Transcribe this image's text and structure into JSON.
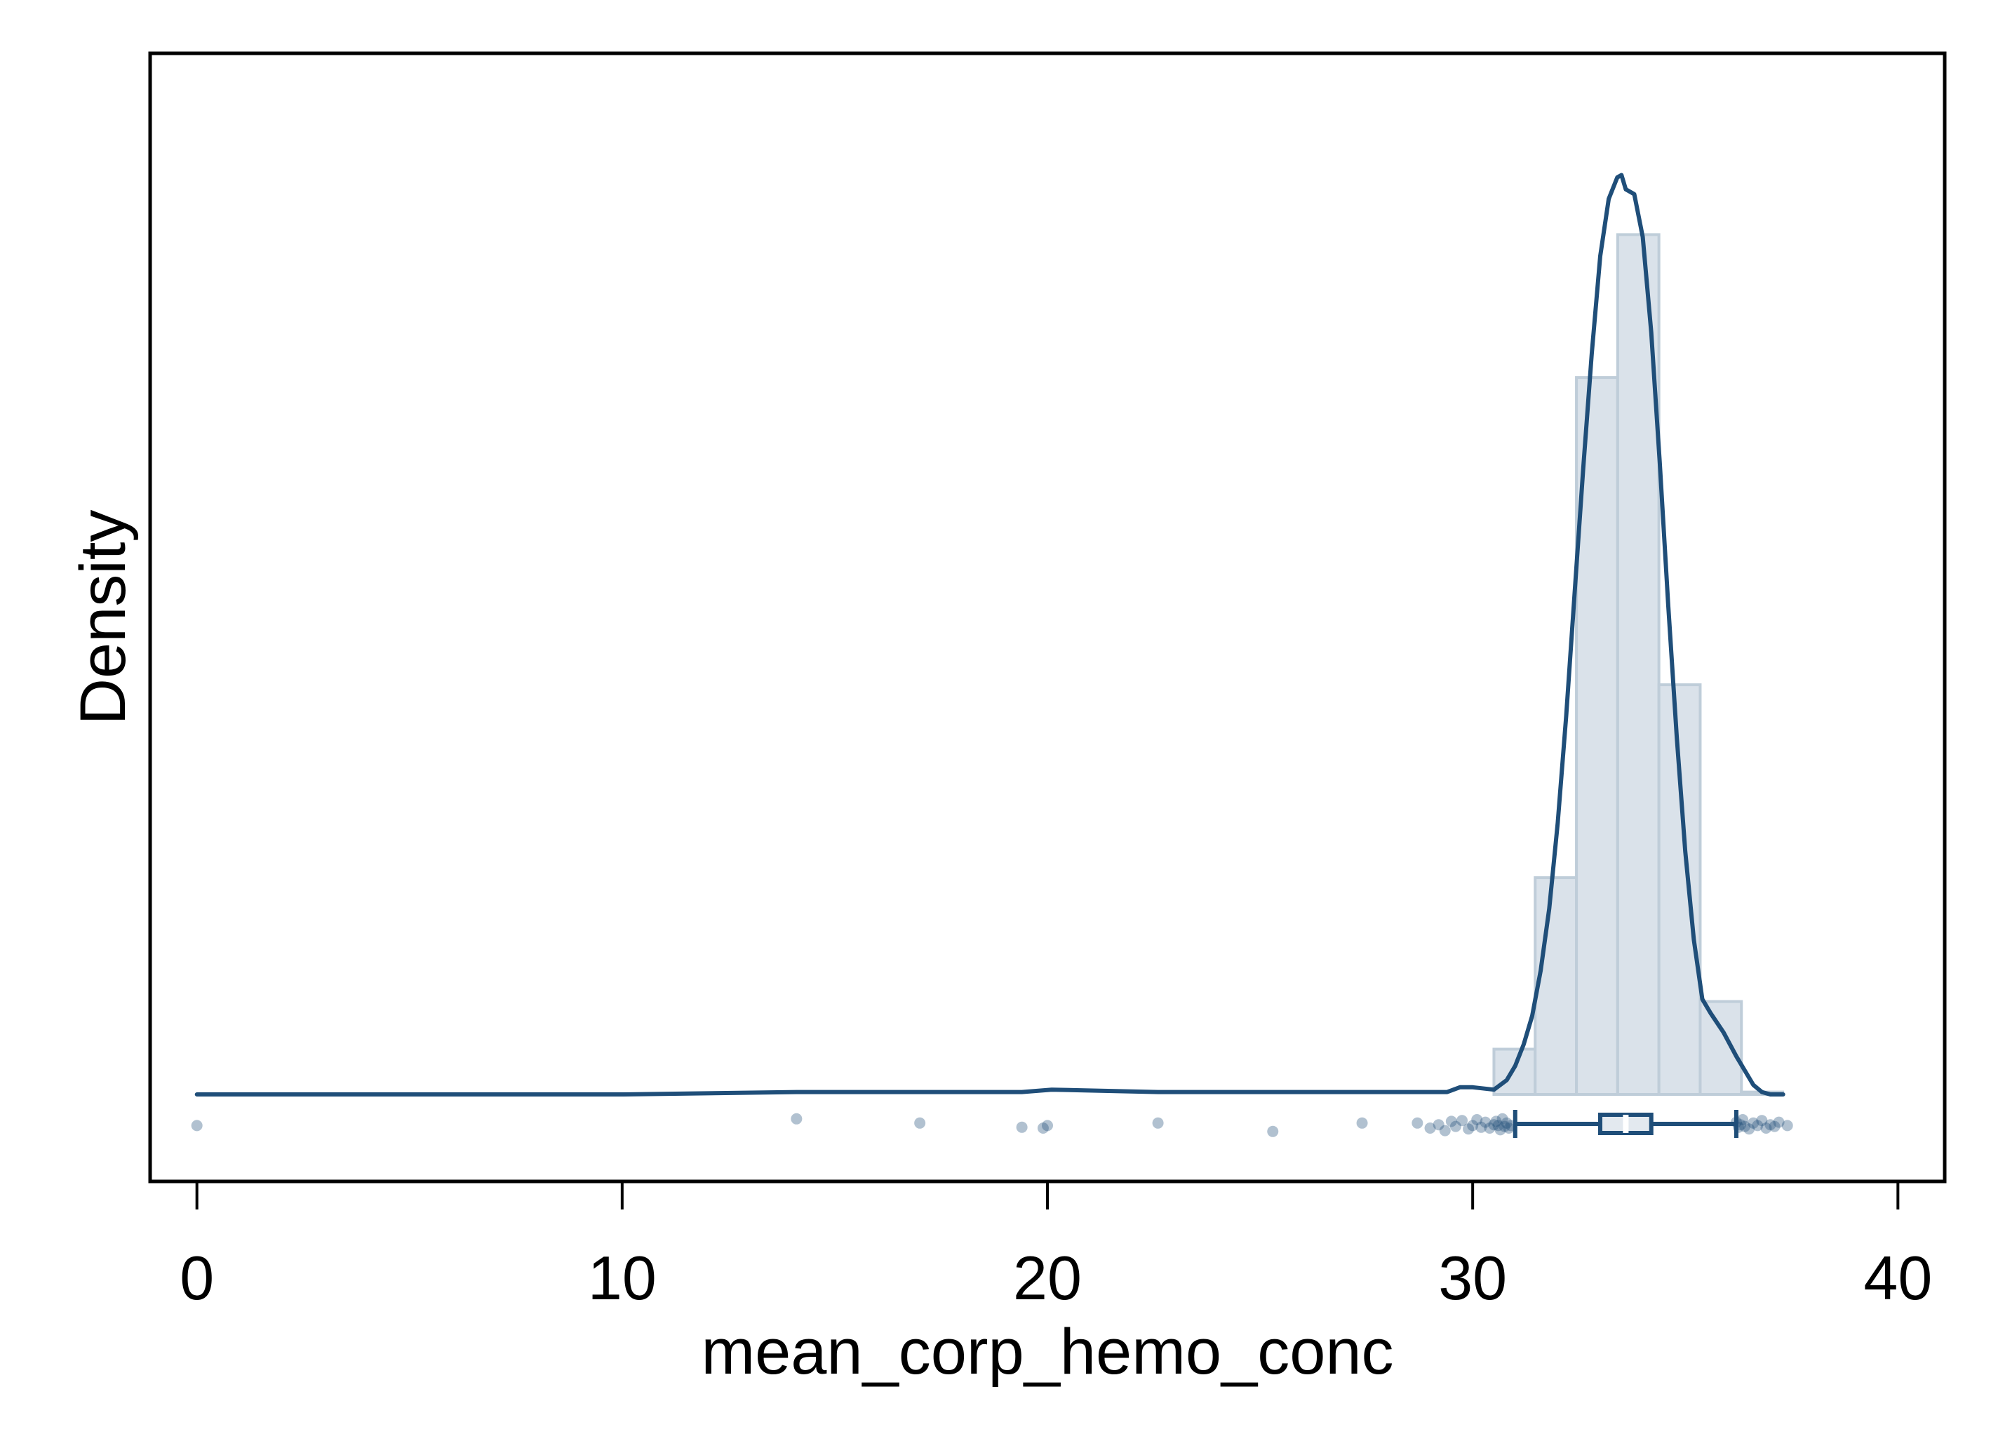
{
  "chart_data": {
    "type": "histogram",
    "xlabel": "mean_corp_hemo_conc",
    "ylabel": "Density",
    "xlim": [
      -1.1,
      41.1
    ],
    "xticks": [
      0,
      10,
      20,
      30,
      40
    ],
    "x_tick_labels": [
      "0",
      "10",
      "20",
      "30",
      "40"
    ],
    "y_ticks_shown": false,
    "grid": false,
    "legend": "none",
    "colors": {
      "kde_line": "#1f4e79",
      "bar_fill": "#dae2ea",
      "bar_edge": "#bfcdd9",
      "points": "#1f4e79",
      "axes": "#000000"
    },
    "histogram": {
      "bin_edges": [
        30.5,
        31.47,
        32.44,
        33.41,
        34.38,
        35.35,
        36.32,
        37.29
      ],
      "densities": [
        0.019,
        0.091,
        0.301,
        0.361,
        0.172,
        0.039,
        0.001
      ]
    },
    "kde": {
      "x": [
        0,
        5,
        10,
        14.1,
        17,
        19.4,
        20.1,
        22.6,
        25.3,
        27.4,
        28.8,
        29.4,
        29.7,
        30.0,
        30.5,
        30.8,
        31.0,
        31.2,
        31.4,
        31.6,
        31.8,
        32.0,
        32.2,
        32.4,
        32.6,
        32.8,
        33.0,
        33.2,
        33.4,
        33.5,
        33.6,
        33.8,
        34.0,
        34.2,
        34.4,
        34.6,
        34.8,
        35.0,
        35.2,
        35.4,
        35.6,
        35.9,
        36.2,
        36.4,
        36.6,
        36.8,
        37.0,
        37.3
      ],
      "y": [
        0,
        0,
        0,
        0.001,
        0.001,
        0.001,
        0.002,
        0.001,
        0.001,
        0.001,
        0.001,
        0.001,
        0.003,
        0.003,
        0.002,
        0.006,
        0.012,
        0.021,
        0.033,
        0.052,
        0.078,
        0.114,
        0.159,
        0.211,
        0.263,
        0.311,
        0.352,
        0.376,
        0.385,
        0.386,
        0.38,
        0.378,
        0.36,
        0.32,
        0.265,
        0.205,
        0.15,
        0.102,
        0.065,
        0.04,
        0.034,
        0.026,
        0.016,
        0.01,
        0.004,
        0.001,
        0,
        0
      ]
    },
    "box": {
      "whisker_low": 31.0,
      "q1": 33.0,
      "median": 33.6,
      "q3": 34.2,
      "whisker_high": 36.2
    },
    "points": {
      "x": [
        0,
        14.1,
        17.0,
        19.4,
        19.9,
        20.0,
        22.6,
        25.3,
        27.4,
        28.7,
        29.0,
        29.2,
        29.35,
        29.5,
        29.6,
        29.75,
        29.9,
        30.0,
        30.1,
        30.2,
        30.3,
        30.4,
        30.5,
        30.55,
        30.6,
        30.65,
        30.7,
        30.75,
        30.8,
        30.85,
        30.9,
        36.2,
        36.25,
        36.3,
        36.35,
        36.4,
        36.5,
        36.6,
        36.7,
        36.8,
        36.9,
        37.0,
        37.1,
        37.2,
        37.4
      ],
      "jitter": [
        0.2,
        -0.6,
        -0.1,
        0.4,
        0.5,
        0.2,
        -0.1,
        0.9,
        -0.1,
        -0.1,
        0.5,
        0.1,
        0.8,
        -0.3,
        0.3,
        -0.4,
        0.6,
        0.2,
        -0.5,
        0.4,
        -0.2,
        0.5,
        0.1,
        -0.3,
        0.2,
        0.7,
        -0.6,
        0.3,
        -0.1,
        0.5,
        0.2,
        -0.2,
        0.4,
        0.1,
        -0.5,
        0.3,
        0.6,
        -0.1,
        0.2,
        -0.4,
        0.5,
        0.1,
        0.3,
        -0.2,
        0.2
      ]
    }
  }
}
